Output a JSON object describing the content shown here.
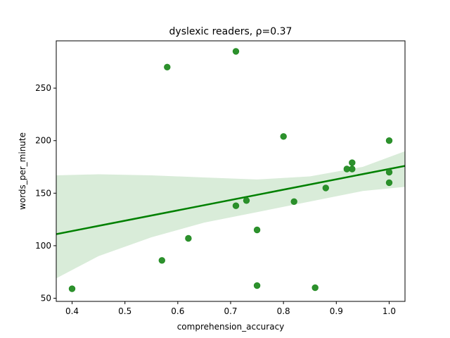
{
  "chart_data": {
    "type": "scatter",
    "title": "dyslexic readers, ρ=0.37",
    "xlabel": "comprehension_accuracy",
    "ylabel": "words_per_minute",
    "xlim": [
      0.37,
      1.03
    ],
    "ylim": [
      47,
      295
    ],
    "xticks": [
      0.4,
      0.5,
      0.6,
      0.7,
      0.8,
      0.9,
      1.0
    ],
    "xtick_labels": [
      "0.4",
      "0.5",
      "0.6",
      "0.7",
      "0.8",
      "0.9",
      "1.0"
    ],
    "yticks": [
      50,
      100,
      150,
      200,
      250
    ],
    "ytick_labels": [
      "50",
      "100",
      "150",
      "200",
      "250"
    ],
    "grid": false,
    "colors": {
      "points": "#228b22",
      "line": "#008000",
      "band": "#d9ecd9"
    },
    "points": [
      {
        "x": 0.4,
        "y": 59
      },
      {
        "x": 0.57,
        "y": 86
      },
      {
        "x": 0.58,
        "y": 270
      },
      {
        "x": 0.62,
        "y": 107
      },
      {
        "x": 0.71,
        "y": 285
      },
      {
        "x": 0.71,
        "y": 138
      },
      {
        "x": 0.73,
        "y": 143
      },
      {
        "x": 0.75,
        "y": 115
      },
      {
        "x": 0.75,
        "y": 62
      },
      {
        "x": 0.8,
        "y": 204
      },
      {
        "x": 0.82,
        "y": 142
      },
      {
        "x": 0.86,
        "y": 60
      },
      {
        "x": 0.88,
        "y": 155
      },
      {
        "x": 0.92,
        "y": 173
      },
      {
        "x": 0.93,
        "y": 179
      },
      {
        "x": 0.93,
        "y": 173
      },
      {
        "x": 1.0,
        "y": 200
      },
      {
        "x": 1.0,
        "y": 170
      },
      {
        "x": 1.0,
        "y": 160
      }
    ],
    "regression": {
      "x": [
        0.37,
        1.03
      ],
      "y": [
        111,
        176
      ]
    },
    "confidence_band": {
      "x": [
        0.37,
        0.45,
        0.55,
        0.65,
        0.75,
        0.85,
        0.95,
        1.03
      ],
      "upper": [
        167,
        168,
        167,
        165,
        163,
        166,
        175,
        190
      ],
      "lower": [
        69,
        90,
        108,
        122,
        132,
        142,
        152,
        156
      ]
    }
  }
}
